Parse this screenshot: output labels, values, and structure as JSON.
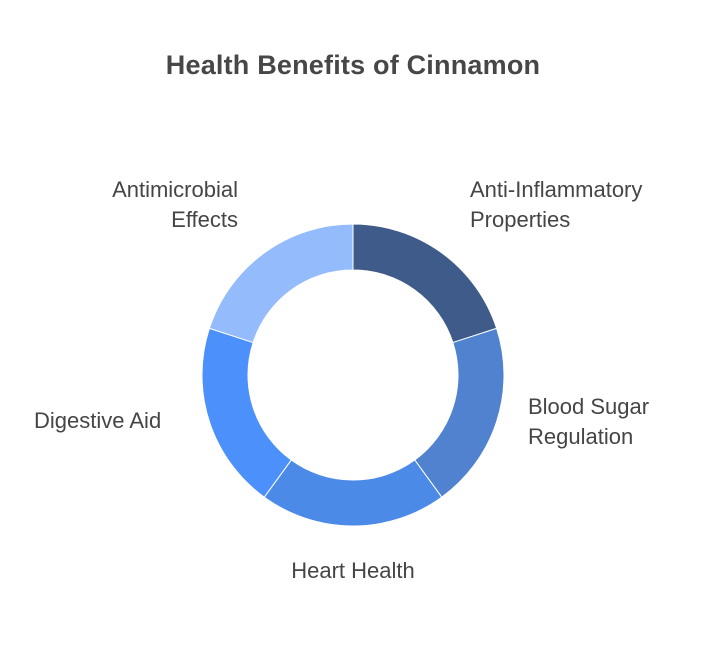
{
  "title": "Health Benefits of Cinnamon",
  "segments": [
    {
      "lines": [
        "Anti-Inflammatory",
        "Properties"
      ],
      "color": "#3F5B8A"
    },
    {
      "lines": [
        "Blood Sugar",
        "Regulation"
      ],
      "color": "#5082D0"
    },
    {
      "lines": [
        "Heart Health"
      ],
      "color": "#4C8AE8"
    },
    {
      "lines": [
        "Digestive Aid"
      ],
      "color": "#4B90FB"
    },
    {
      "lines": [
        "Antimicrobial",
        "Effects"
      ],
      "color": "#94BCFD"
    }
  ]
}
